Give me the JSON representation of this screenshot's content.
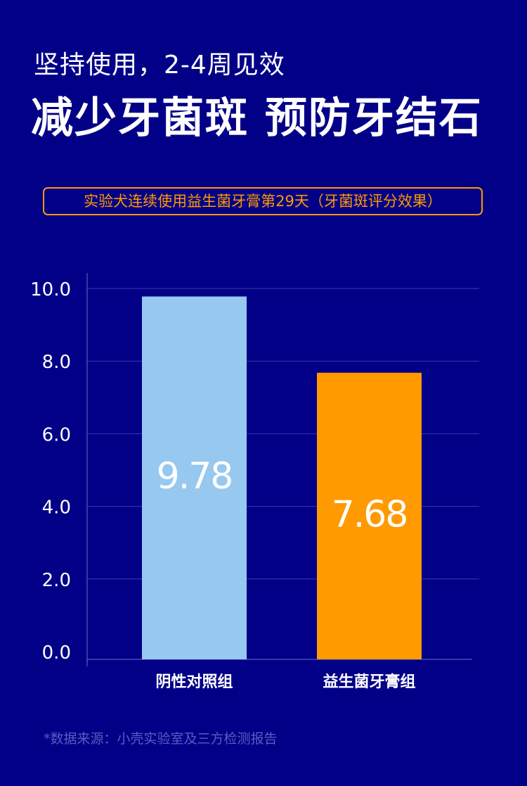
{
  "header": {
    "subtitle": "坚持使用，2-4周见效",
    "title": "减少牙菌斑 预防牙结石"
  },
  "banner": {
    "text": "实验犬连续使用益生菌牙膏第29天（牙菌斑评分效果）"
  },
  "colors": {
    "background": "#020087",
    "accent": "#ff9a00",
    "bar_control": "#96c8f0",
    "bar_probiotic": "#ff9a00",
    "grid": "#3a3ca8",
    "axis": "#6a6cc8"
  },
  "chart_data": {
    "type": "bar",
    "categories": [
      "阴性对照组",
      "益生菌牙膏组"
    ],
    "values": [
      9.78,
      7.68
    ],
    "value_labels": [
      "9.78",
      "7.68"
    ],
    "ylim": [
      0,
      10
    ],
    "yticks": [
      "0.0",
      "2.0",
      "4.0",
      "6.0",
      "8.0",
      "10.0"
    ],
    "ytick_values": [
      0,
      2,
      4,
      6,
      8,
      10
    ],
    "bar_colors": [
      "#96c8f0",
      "#ff9a00"
    ],
    "grid": true,
    "legend": "none",
    "title": "",
    "xlabel": "",
    "ylabel": ""
  },
  "footer": {
    "source": "*数据来源：小壳实验室及三方检测报告"
  }
}
